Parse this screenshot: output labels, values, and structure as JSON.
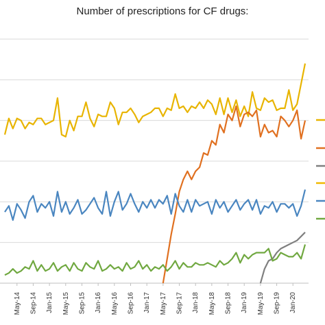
{
  "chart_data": {
    "type": "line",
    "title": "Number of prescriptions for CF drugs:",
    "xlabel": "",
    "ylabel": "",
    "x_tick_labels": [
      "May-14",
      "Sep-14",
      "Jan-15",
      "May-15",
      "Sep-15",
      "Jan-16",
      "May-16",
      "Sep-16",
      "Jan-17",
      "May-17",
      "Sep-17",
      "Jan-18",
      "May-18",
      "Sep-18",
      "Jan-19",
      "May-19",
      "Sep-19",
      "Jan-20"
    ],
    "x_range": [
      "Feb-14",
      "Apr-20"
    ],
    "y_range": [
      0,
      6
    ],
    "grid": true,
    "legend": "right",
    "series": [
      {
        "color": "#E8B400",
        "x": [
          "Feb-14",
          "Mar-14",
          "Apr-14",
          "May-14",
          "Jun-14",
          "Jul-14",
          "Aug-14",
          "Sep-14",
          "Oct-14",
          "Nov-14",
          "Dec-14",
          "Jan-15",
          "Feb-15",
          "Mar-15",
          "Apr-15",
          "May-15",
          "Jun-15",
          "Jul-15",
          "Aug-15",
          "Sep-15",
          "Oct-15",
          "Nov-15",
          "Dec-15",
          "Jan-16",
          "Feb-16",
          "Mar-16",
          "Apr-16",
          "May-16",
          "Jun-16",
          "Jul-16",
          "Aug-16",
          "Sep-16",
          "Oct-16",
          "Nov-16",
          "Dec-16",
          "Jan-17",
          "Feb-17",
          "Mar-17",
          "Apr-17",
          "May-17",
          "Jun-17",
          "Jul-17",
          "Aug-17",
          "Sep-17",
          "Oct-17",
          "Nov-17",
          "Dec-17",
          "Jan-18",
          "Feb-18",
          "Mar-18",
          "Apr-18",
          "May-18",
          "Jun-18",
          "Jul-18",
          "Aug-18",
          "Sep-18",
          "Oct-18",
          "Nov-18",
          "Dec-18",
          "Jan-19",
          "Feb-19",
          "Mar-19",
          "Apr-19",
          "May-19",
          "Jun-19",
          "Jul-19",
          "Aug-19",
          "Sep-19",
          "Oct-19",
          "Nov-19",
          "Dec-19",
          "Jan-20",
          "Feb-20",
          "Mar-20",
          "Apr-20"
        ],
        "values": [
          3.65,
          4.05,
          3.8,
          4.05,
          4.0,
          3.8,
          3.95,
          3.9,
          4.05,
          4.05,
          3.9,
          3.95,
          4.0,
          4.55,
          3.65,
          3.6,
          4.0,
          3.75,
          4.1,
          4.1,
          4.45,
          4.05,
          3.85,
          4.15,
          4.1,
          4.1,
          4.45,
          4.3,
          3.9,
          4.2,
          4.2,
          4.3,
          4.15,
          3.95,
          4.1,
          4.15,
          4.2,
          4.3,
          4.3,
          4.1,
          4.3,
          4.25,
          4.65,
          4.3,
          4.35,
          4.2,
          4.35,
          4.3,
          4.45,
          4.3,
          4.5,
          4.4,
          4.15,
          4.55,
          4.15,
          4.55,
          4.2,
          4.5,
          4.1,
          4.35,
          4.1,
          4.7,
          4.3,
          4.25,
          4.55,
          4.45,
          4.5,
          4.25,
          4.3,
          4.3,
          4.75,
          4.25,
          4.4,
          4.9,
          5.4
        ]
      },
      {
        "color": "#E07020",
        "x": [
          "May-17",
          "Jun-17",
          "Jul-17",
          "Aug-17",
          "Sep-17",
          "Oct-17",
          "Nov-17",
          "Dec-17",
          "Jan-18",
          "Feb-18",
          "Mar-18",
          "Apr-18",
          "May-18",
          "Jun-18",
          "Jul-18",
          "Aug-18",
          "Sep-18",
          "Oct-18",
          "Nov-18",
          "Dec-18",
          "Jan-19",
          "Feb-19",
          "Mar-19",
          "Apr-19",
          "May-19",
          "Jun-19",
          "Jul-19",
          "Aug-19",
          "Sep-19",
          "Oct-19",
          "Nov-19",
          "Dec-19",
          "Jan-20",
          "Feb-20",
          "Mar-20",
          "Apr-20"
        ],
        "values": [
          0.0,
          0.6,
          1.2,
          1.7,
          2.25,
          2.55,
          2.75,
          2.55,
          2.75,
          2.85,
          3.2,
          3.15,
          3.5,
          3.4,
          3.9,
          3.7,
          4.15,
          4.0,
          4.35,
          3.85,
          4.15,
          4.2,
          4.1,
          4.25,
          3.6,
          3.9,
          3.7,
          3.75,
          3.6,
          4.1,
          4.0,
          3.85,
          4.0,
          4.25,
          3.55,
          4.0
        ]
      },
      {
        "color": "#7F7F7F",
        "x": [
          "May-19",
          "Jun-19",
          "Jul-19",
          "Aug-19",
          "Sep-19",
          "Oct-19",
          "Nov-19",
          "Dec-19",
          "Jan-20",
          "Feb-20",
          "Mar-20",
          "Apr-20"
        ],
        "values": [
          0.0,
          0.35,
          0.55,
          0.6,
          0.75,
          0.85,
          0.9,
          0.95,
          1.0,
          1.05,
          1.15,
          1.25
        ]
      },
      {
        "color": "#F0B800",
        "x": [],
        "values": []
      },
      {
        "color": "#4A86C0",
        "x": [
          "Feb-14",
          "Mar-14",
          "Apr-14",
          "May-14",
          "Jun-14",
          "Jul-14",
          "Aug-14",
          "Sep-14",
          "Oct-14",
          "Nov-14",
          "Dec-14",
          "Jan-15",
          "Feb-15",
          "Mar-15",
          "Apr-15",
          "May-15",
          "Jun-15",
          "Jul-15",
          "Aug-15",
          "Sep-15",
          "Oct-15",
          "Nov-15",
          "Dec-15",
          "Jan-16",
          "Feb-16",
          "Mar-16",
          "Apr-16",
          "May-16",
          "Jun-16",
          "Jul-16",
          "Aug-16",
          "Sep-16",
          "Oct-16",
          "Nov-16",
          "Dec-16",
          "Jan-17",
          "Feb-17",
          "Mar-17",
          "Apr-17",
          "May-17",
          "Jun-17",
          "Jul-17",
          "Aug-17",
          "Sep-17",
          "Oct-17",
          "Nov-17",
          "Dec-17",
          "Jan-18",
          "Feb-18",
          "Mar-18",
          "Apr-18",
          "May-18",
          "Jun-18",
          "Jul-18",
          "Aug-18",
          "Sep-18",
          "Oct-18",
          "Nov-18",
          "Dec-18",
          "Jan-19",
          "Feb-19",
          "Mar-19",
          "Apr-19",
          "May-19",
          "Jun-19",
          "Jul-19",
          "Aug-19",
          "Sep-19",
          "Oct-19",
          "Nov-19",
          "Dec-19",
          "Jan-20",
          "Feb-20",
          "Mar-20",
          "Apr-20"
        ],
        "values": [
          1.75,
          1.9,
          1.55,
          1.95,
          1.8,
          1.6,
          2.0,
          2.15,
          1.75,
          1.95,
          1.85,
          2.0,
          1.65,
          2.25,
          1.75,
          2.0,
          1.7,
          1.85,
          2.05,
          1.7,
          1.8,
          1.95,
          2.1,
          1.85,
          1.7,
          2.25,
          1.65,
          2.0,
          2.25,
          1.8,
          1.95,
          2.2,
          1.95,
          1.75,
          2.0,
          1.85,
          2.05,
          1.85,
          2.05,
          1.95,
          2.15,
          1.7,
          2.2,
          1.9,
          1.75,
          2.05,
          1.75,
          2.05,
          1.9,
          1.95,
          2.0,
          1.7,
          2.05,
          1.85,
          2.0,
          1.75,
          1.9,
          2.05,
          1.8,
          1.95,
          2.05,
          1.8,
          2.05,
          1.7,
          1.9,
          1.85,
          2.0,
          1.75,
          1.95,
          1.95,
          1.85,
          1.95,
          1.65,
          1.9,
          2.3
        ]
      },
      {
        "color": "#70A840",
        "x": [
          "Feb-14",
          "Mar-14",
          "Apr-14",
          "May-14",
          "Jun-14",
          "Jul-14",
          "Aug-14",
          "Sep-14",
          "Oct-14",
          "Nov-14",
          "Dec-14",
          "Jan-15",
          "Feb-15",
          "Mar-15",
          "Apr-15",
          "May-15",
          "Jun-15",
          "Jul-15",
          "Aug-15",
          "Sep-15",
          "Oct-15",
          "Nov-15",
          "Dec-15",
          "Jan-16",
          "Feb-16",
          "Mar-16",
          "Apr-16",
          "May-16",
          "Jun-16",
          "Jul-16",
          "Aug-16",
          "Sep-16",
          "Oct-16",
          "Nov-16",
          "Dec-16",
          "Jan-17",
          "Feb-17",
          "Mar-17",
          "Apr-17",
          "May-17",
          "Jun-17",
          "Jul-17",
          "Aug-17",
          "Sep-17",
          "Oct-17",
          "Nov-17",
          "Dec-17",
          "Jan-18",
          "Feb-18",
          "Mar-18",
          "Apr-18",
          "May-18",
          "Jun-18",
          "Jul-18",
          "Aug-18",
          "Sep-18",
          "Oct-18",
          "Nov-18",
          "Dec-18",
          "Jan-19",
          "Feb-19",
          "Mar-19",
          "Apr-19",
          "May-19",
          "Jun-19",
          "Jul-19",
          "Aug-19",
          "Sep-19",
          "Oct-19",
          "Nov-19",
          "Dec-19",
          "Jan-20",
          "Feb-20",
          "Mar-20",
          "Apr-20"
        ],
        "values": [
          0.2,
          0.25,
          0.35,
          0.25,
          0.3,
          0.4,
          0.35,
          0.55,
          0.3,
          0.45,
          0.3,
          0.35,
          0.5,
          0.3,
          0.4,
          0.45,
          0.3,
          0.5,
          0.35,
          0.3,
          0.5,
          0.4,
          0.35,
          0.55,
          0.3,
          0.35,
          0.45,
          0.35,
          0.4,
          0.3,
          0.5,
          0.35,
          0.4,
          0.55,
          0.35,
          0.45,
          0.3,
          0.4,
          0.35,
          0.45,
          0.3,
          0.4,
          0.55,
          0.35,
          0.5,
          0.4,
          0.4,
          0.5,
          0.45,
          0.45,
          0.5,
          0.45,
          0.4,
          0.55,
          0.45,
          0.5,
          0.6,
          0.75,
          0.5,
          0.7,
          0.6,
          0.7,
          0.75,
          0.75,
          0.75,
          0.85,
          0.55,
          0.6,
          0.75,
          0.7,
          0.65,
          0.65,
          0.75,
          0.6,
          0.95
        ]
      }
    ]
  }
}
